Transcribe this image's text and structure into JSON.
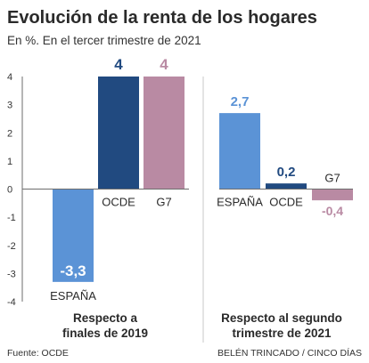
{
  "title": "Evolución de la renta de los hogares",
  "subtitle": "En %. En el tercer trimestre de 2021",
  "source": "Fuente: OCDE",
  "credit": "BELÉN TRINCADO / CINCO DÍAS",
  "colors": {
    "ESPAÑA": "#5b93d6",
    "OCDE": "#214a80",
    "G7": "#b98aa3",
    "axis": "#6d6d6d",
    "divider": "#c9c9c9"
  },
  "chart_data": {
    "type": "bar",
    "y_ticks": [
      "4",
      "3",
      "2",
      "1",
      "0",
      "-1",
      "-2",
      "-3",
      "-4"
    ],
    "ylim": [
      -4,
      4
    ],
    "grid": false,
    "panels": [
      {
        "group_label": [
          "Respecto a",
          "finales de 2019"
        ],
        "categories": [
          "ESPAÑA",
          "OCDE",
          "G7"
        ],
        "values": [
          -3.3,
          4,
          4
        ],
        "value_labels": [
          "-3,3",
          "4",
          "4"
        ]
      },
      {
        "group_label": [
          "Respecto al segundo",
          "trimestre de 2021"
        ],
        "categories": [
          "ESPAÑA",
          "OCDE",
          "G7"
        ],
        "values": [
          2.7,
          0.2,
          -0.4
        ],
        "value_labels": [
          "2,7",
          "0,2",
          "-0,4"
        ]
      }
    ]
  }
}
